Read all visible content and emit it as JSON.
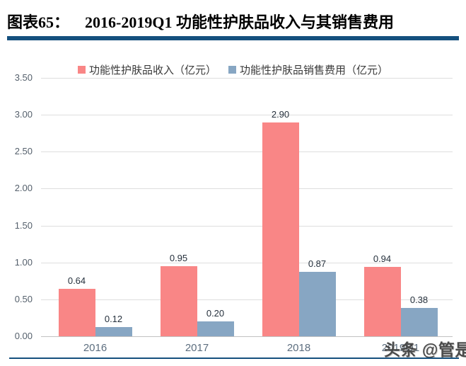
{
  "header": {
    "figure_label": "图表65：",
    "figure_title": "2016-2019Q1 功能性护肤品收入与其销售费用"
  },
  "colors": {
    "accent_rule": "#15507E",
    "revenue_bar": "#F98686",
    "expense_bar": "#87A6C3",
    "gridline": "#DEDEDE",
    "axis_line": "#C2C2C2",
    "ytick_label": "#55606C",
    "xtick_label": "#5D6E7F",
    "value_label": "#25303C"
  },
  "chart_data": {
    "type": "bar",
    "categories": [
      "2016",
      "2017",
      "2018",
      "2019Q1"
    ],
    "series": [
      {
        "name": "功能性护肤品收入（亿元）",
        "color": "#F98686",
        "values": [
          0.64,
          0.95,
          2.9,
          0.94
        ]
      },
      {
        "name": "功能性护肤品销售费用（亿元）",
        "color": "#87A6C3",
        "values": [
          0.12,
          0.2,
          0.87,
          0.38
        ]
      }
    ],
    "value_labels": [
      "0.64",
      "0.12",
      "0.95",
      "0.20",
      "2.90",
      "0.87",
      "0.94",
      "0.38"
    ],
    "ylim": [
      0,
      3.5
    ],
    "ytick_step": 0.5,
    "ytick_labels": [
      "0.00",
      "0.50",
      "1.00",
      "1.50",
      "2.00",
      "2.50",
      "3.00",
      "3.50"
    ],
    "grid": true,
    "legend_position": "top",
    "title": "2016-2019Q1 功能性护肤品收入与其销售费用",
    "xlabel": "",
    "ylabel": ""
  },
  "watermark": {
    "text": "头条 @管是"
  }
}
